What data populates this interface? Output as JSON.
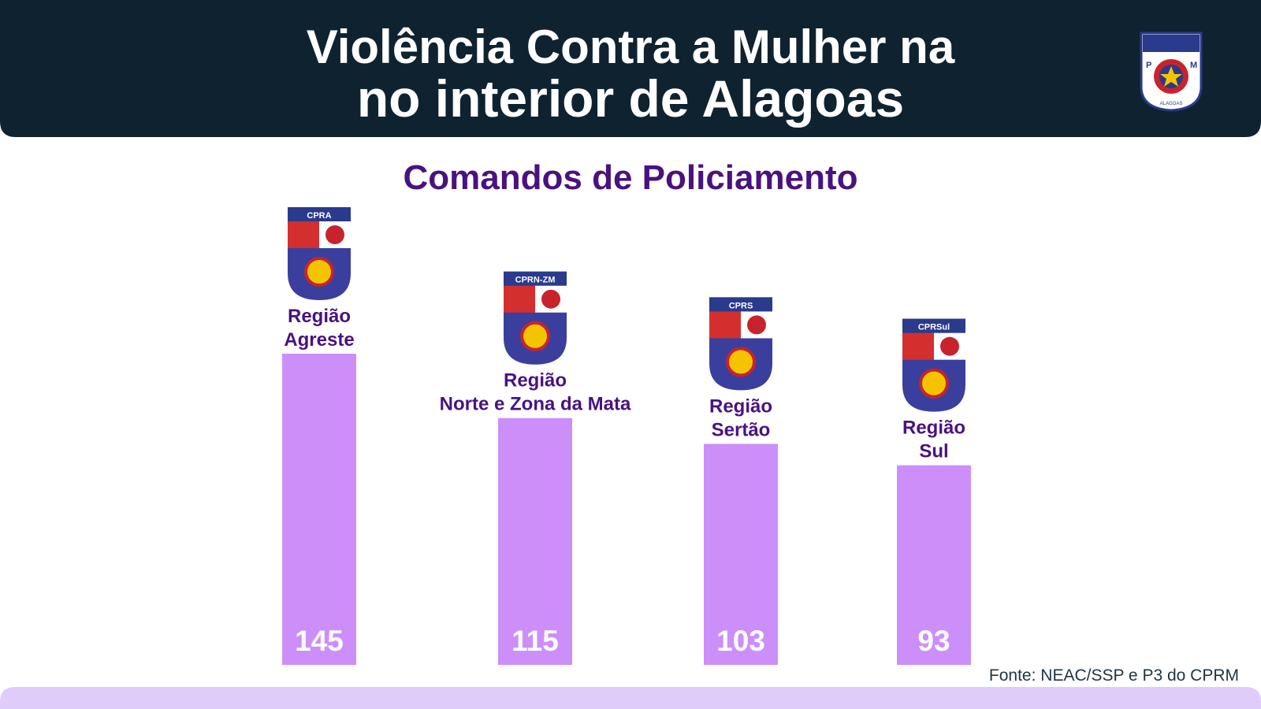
{
  "header": {
    "title_line1": "Violência Contra a Mulher na",
    "title_line2": "no interior de Alagoas",
    "logo": {
      "left": "P",
      "right": "M",
      "caption": "ALAGOAS"
    }
  },
  "chart_data": {
    "type": "bar",
    "title": "Comandos de Policiamento",
    "categories": [
      "Região Agreste",
      "Região Norte e Zona da Mata",
      "Região Sertão",
      "Região Sul"
    ],
    "badges": [
      "CPRA",
      "CPRN-ZM",
      "CPRS",
      "CPRSul"
    ],
    "values": [
      145,
      115,
      103,
      93
    ],
    "color": "#cc8ff9",
    "ylim": [
      0,
      145
    ]
  },
  "source": "Fonte: NEAC/SSP e P3 do CPRM"
}
